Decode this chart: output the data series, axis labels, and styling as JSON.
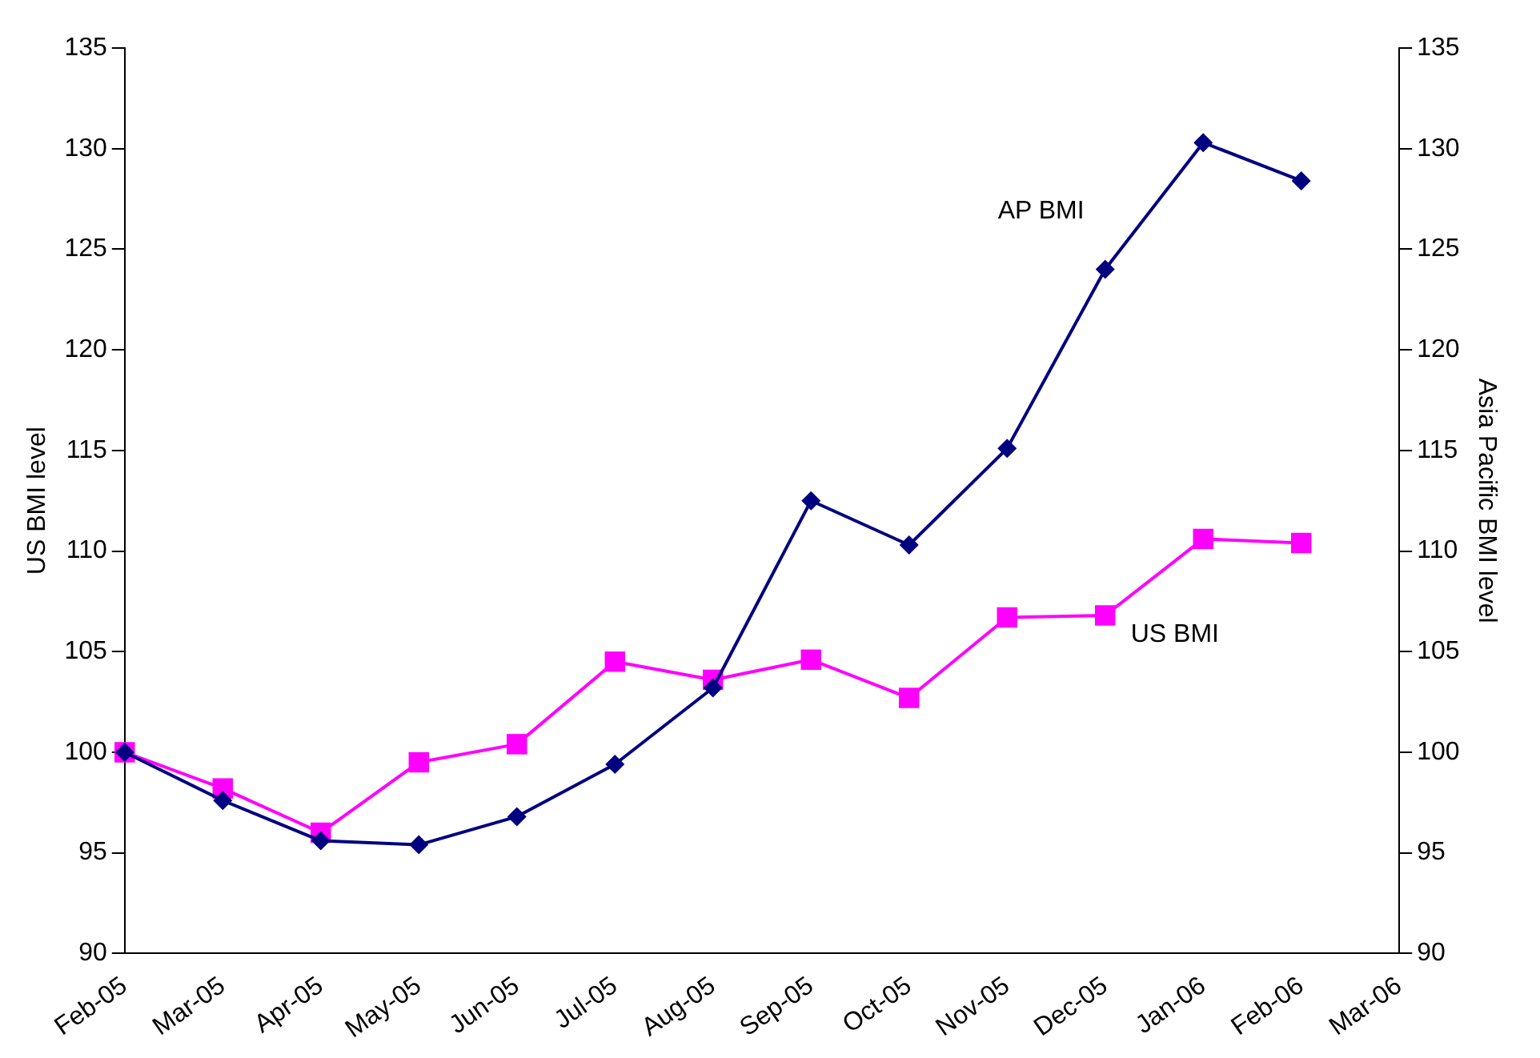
{
  "chart_data": {
    "type": "line",
    "ylabel": "US BMI level",
    "y2label": "Asia Pacific BMI level",
    "categories": [
      "Feb-05",
      "Mar-05",
      "Apr-05",
      "May-05",
      "Jun-05",
      "Jul-05",
      "Aug-05",
      "Sep-05",
      "Oct-05",
      "Nov-05",
      "Dec-05",
      "Jan-06",
      "Feb-06",
      "Mar-06"
    ],
    "series": [
      {
        "name": "AP BMI",
        "color": "#000080",
        "marker": "diamond",
        "values": [
          100,
          97.6,
          95.6,
          95.4,
          96.8,
          99.4,
          103.2,
          112.5,
          110.3,
          115.1,
          124.0,
          130.3,
          128.4,
          null
        ]
      },
      {
        "name": "US BMI",
        "color": "#ff00ff",
        "marker": "square",
        "values": [
          100,
          98.2,
          96.0,
          99.5,
          100.4,
          104.5,
          103.6,
          104.6,
          102.7,
          106.7,
          106.8,
          110.6,
          110.4,
          null
        ]
      }
    ],
    "ylim": [
      90,
      135
    ],
    "yticks": [
      90,
      95,
      100,
      105,
      110,
      115,
      120,
      125,
      130,
      135
    ],
    "y2lim": [
      90,
      135
    ],
    "y2ticks": [
      90,
      95,
      100,
      105,
      110,
      115,
      120,
      125,
      130,
      135
    ],
    "grid": false,
    "legend": false,
    "line_style": "solid"
  }
}
